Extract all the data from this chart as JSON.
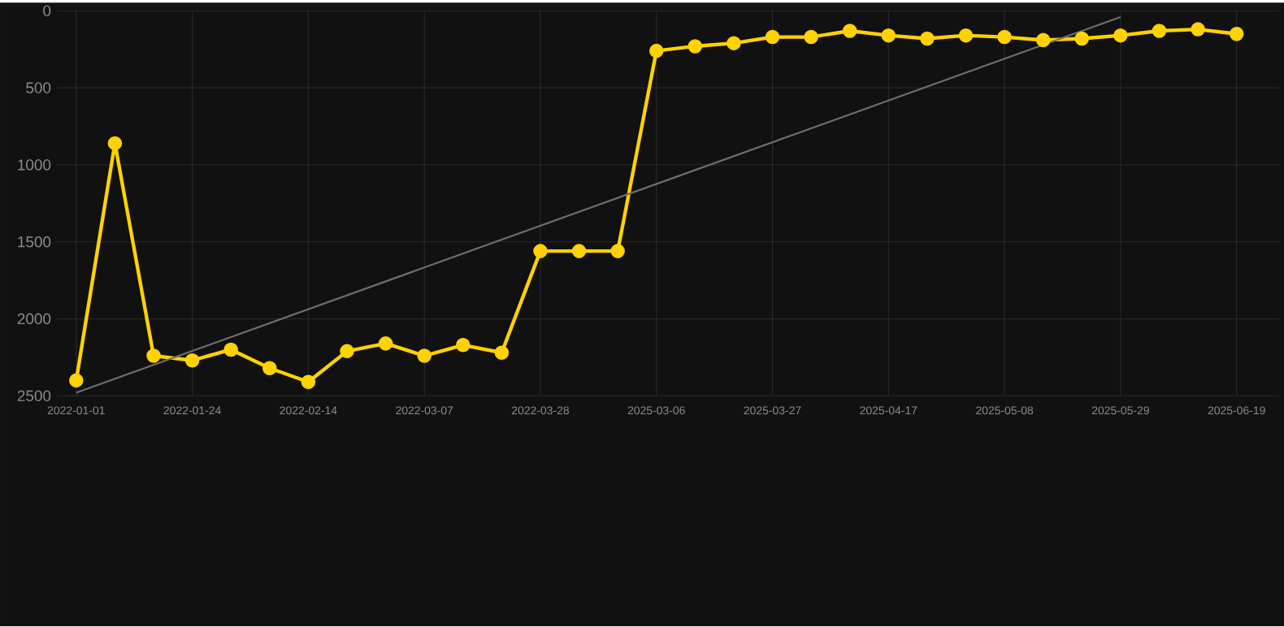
{
  "chart_data": {
    "type": "line",
    "categories": [
      "2022-01-01",
      null,
      null,
      "2022-01-24",
      null,
      null,
      "2022-02-14",
      null,
      null,
      "2022-03-07",
      null,
      null,
      "2022-03-28",
      null,
      null,
      "2025-03-06",
      null,
      null,
      "2025-03-27",
      null,
      null,
      "2025-04-17",
      null,
      null,
      "2025-05-08",
      null,
      null,
      "2025-05-29",
      null,
      null,
      "2025-06-19"
    ],
    "series": [
      {
        "color": "#ffd200",
        "marker": "circle",
        "values": [
          2400,
          860,
          2240,
          2270,
          2200,
          2320,
          2410,
          2210,
          2160,
          2240,
          2170,
          2220,
          1560,
          1560,
          1560,
          260,
          230,
          210,
          170,
          170,
          130,
          160,
          180,
          160,
          170,
          190,
          180,
          160,
          130,
          120,
          150
        ]
      },
      {
        "type": "line",
        "color": "#6e6e6e",
        "marker": "none",
        "values": [
          2480,
          null,
          null,
          null,
          null,
          null,
          null,
          null,
          null,
          null,
          null,
          null,
          null,
          null,
          null,
          null,
          null,
          null,
          null,
          null,
          null,
          null,
          null,
          null,
          null,
          null,
          null,
          40,
          null,
          null,
          null
        ]
      }
    ],
    "ylim": [
      2500,
      0
    ],
    "yticks": [
      0,
      500,
      1000,
      1500,
      2000,
      2500
    ],
    "grid": true
  }
}
